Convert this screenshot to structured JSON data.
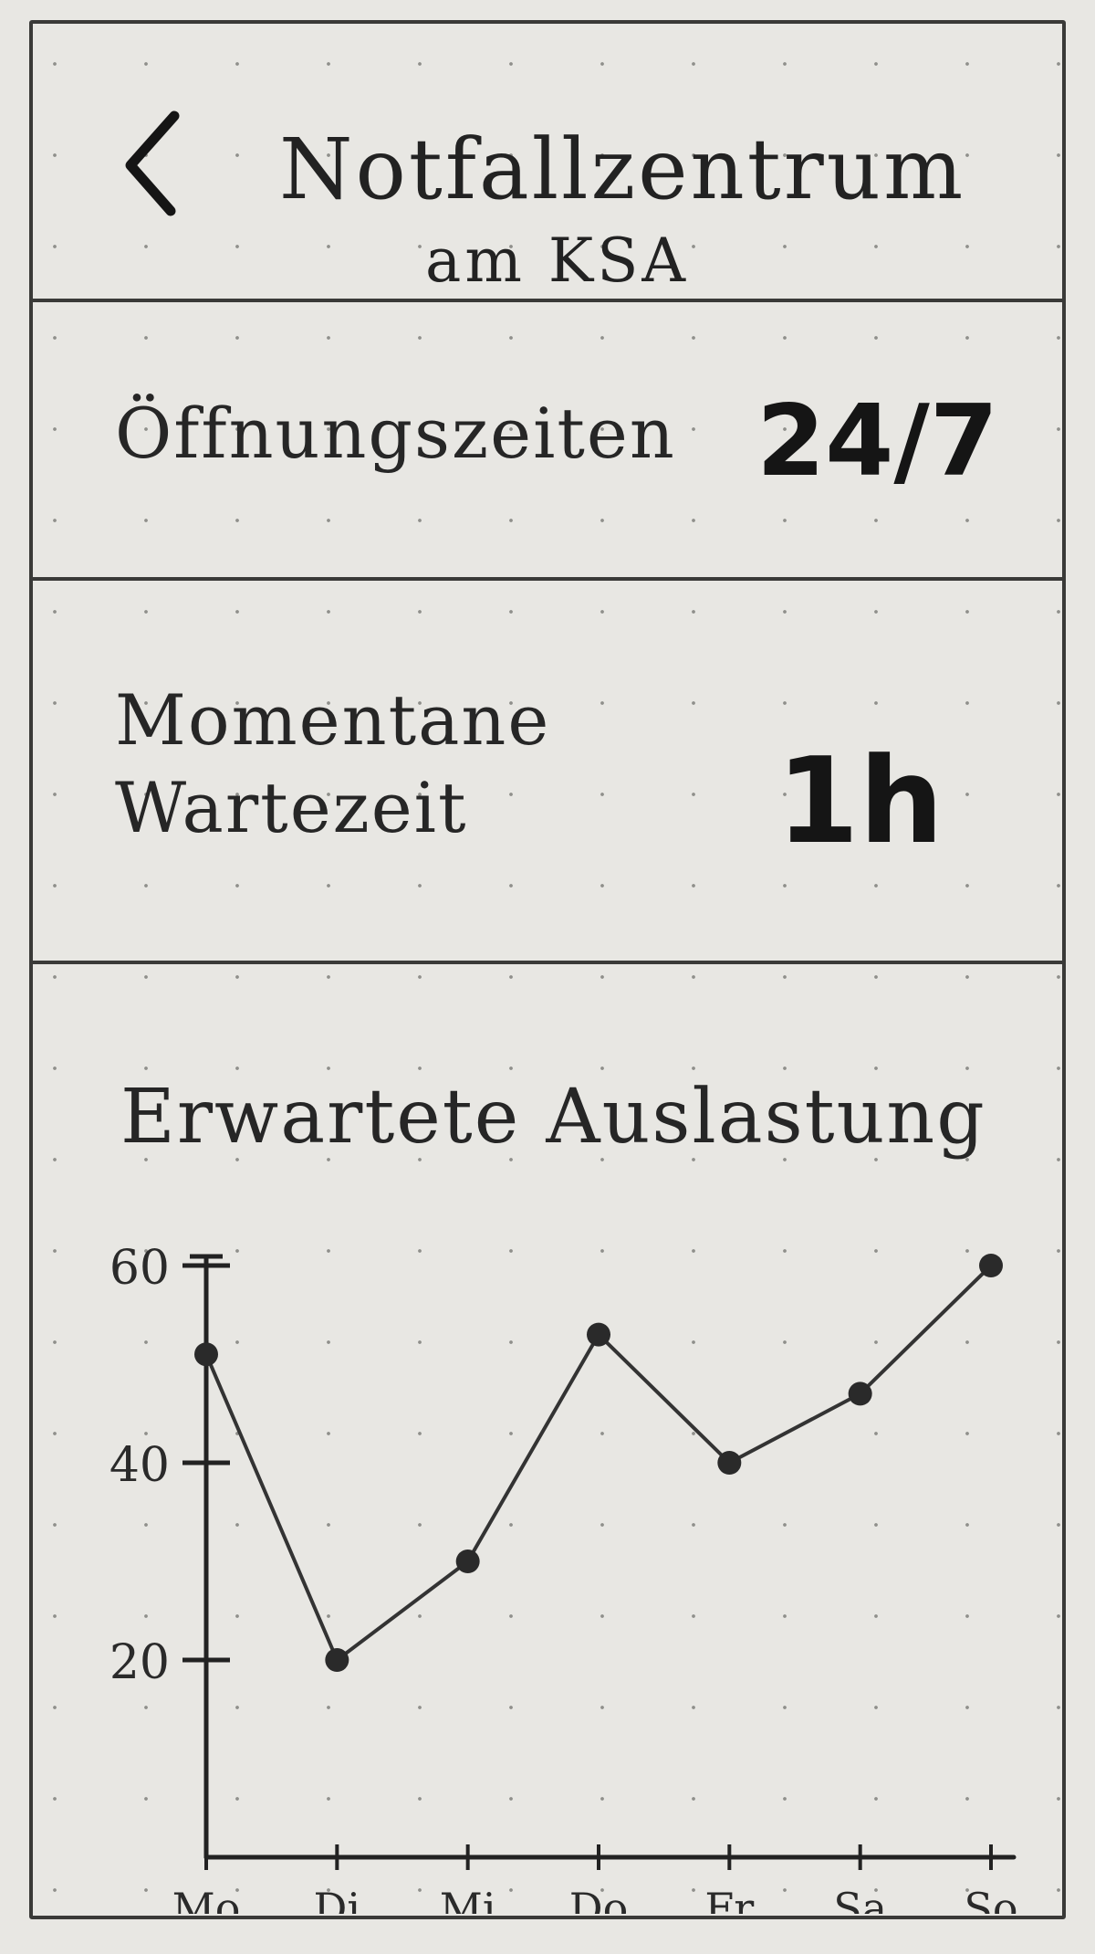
{
  "header": {
    "back_icon": "chevron-left-icon",
    "title": "Notfallzentrum",
    "subtitle": "am KSA"
  },
  "opening_hours": {
    "label": "Öffnungszeiten",
    "value": "24/7"
  },
  "current_wait": {
    "label": "Momentane Wartezeit",
    "value": "1h"
  },
  "occupancy": {
    "title": "Erwartete Auslastung"
  },
  "chart_data": {
    "type": "line",
    "title": "Erwartete Auslastung",
    "xlabel": "",
    "ylabel": "",
    "categories": [
      "Mo",
      "Di",
      "Mi",
      "Do",
      "Fr",
      "Sa",
      "So"
    ],
    "values": [
      51,
      20,
      30,
      53,
      40,
      47,
      60
    ],
    "yticks": [
      "20",
      "40",
      "60"
    ],
    "ylim": [
      0,
      60
    ],
    "grid": false
  }
}
